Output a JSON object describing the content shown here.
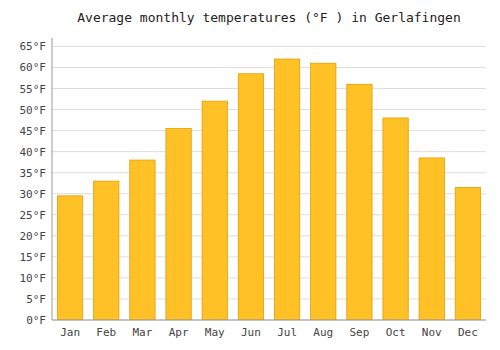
{
  "chart_data": {
    "type": "bar",
    "title": "Average monthly temperatures (°F ) in Gerlafingen",
    "categories": [
      "Jan",
      "Feb",
      "Mar",
      "Apr",
      "May",
      "Jun",
      "Jul",
      "Aug",
      "Sep",
      "Oct",
      "Nov",
      "Dec"
    ],
    "values": [
      29.5,
      33,
      38,
      45.5,
      52,
      58.5,
      62,
      61,
      56,
      48,
      38.5,
      31.5
    ],
    "color": "#FFC125",
    "ylim": [
      0,
      67
    ],
    "yticks": [
      {
        "value": 0,
        "label": "0°F"
      },
      {
        "value": 5,
        "label": "5°F"
      },
      {
        "value": 10,
        "label": "10°F"
      },
      {
        "value": 15,
        "label": "15°F"
      },
      {
        "value": 20,
        "label": "20°F"
      },
      {
        "value": 25,
        "label": "25°F"
      },
      {
        "value": 30,
        "label": "30°F"
      },
      {
        "value": 35,
        "label": "35°F"
      },
      {
        "value": 40,
        "label": "40°F"
      },
      {
        "value": 45,
        "label": "45°F"
      },
      {
        "value": 50,
        "label": "50°F"
      },
      {
        "value": 55,
        "label": "55°F"
      },
      {
        "value": 60,
        "label": "60°F"
      },
      {
        "value": 65,
        "label": "65°F"
      }
    ],
    "grid": true
  }
}
